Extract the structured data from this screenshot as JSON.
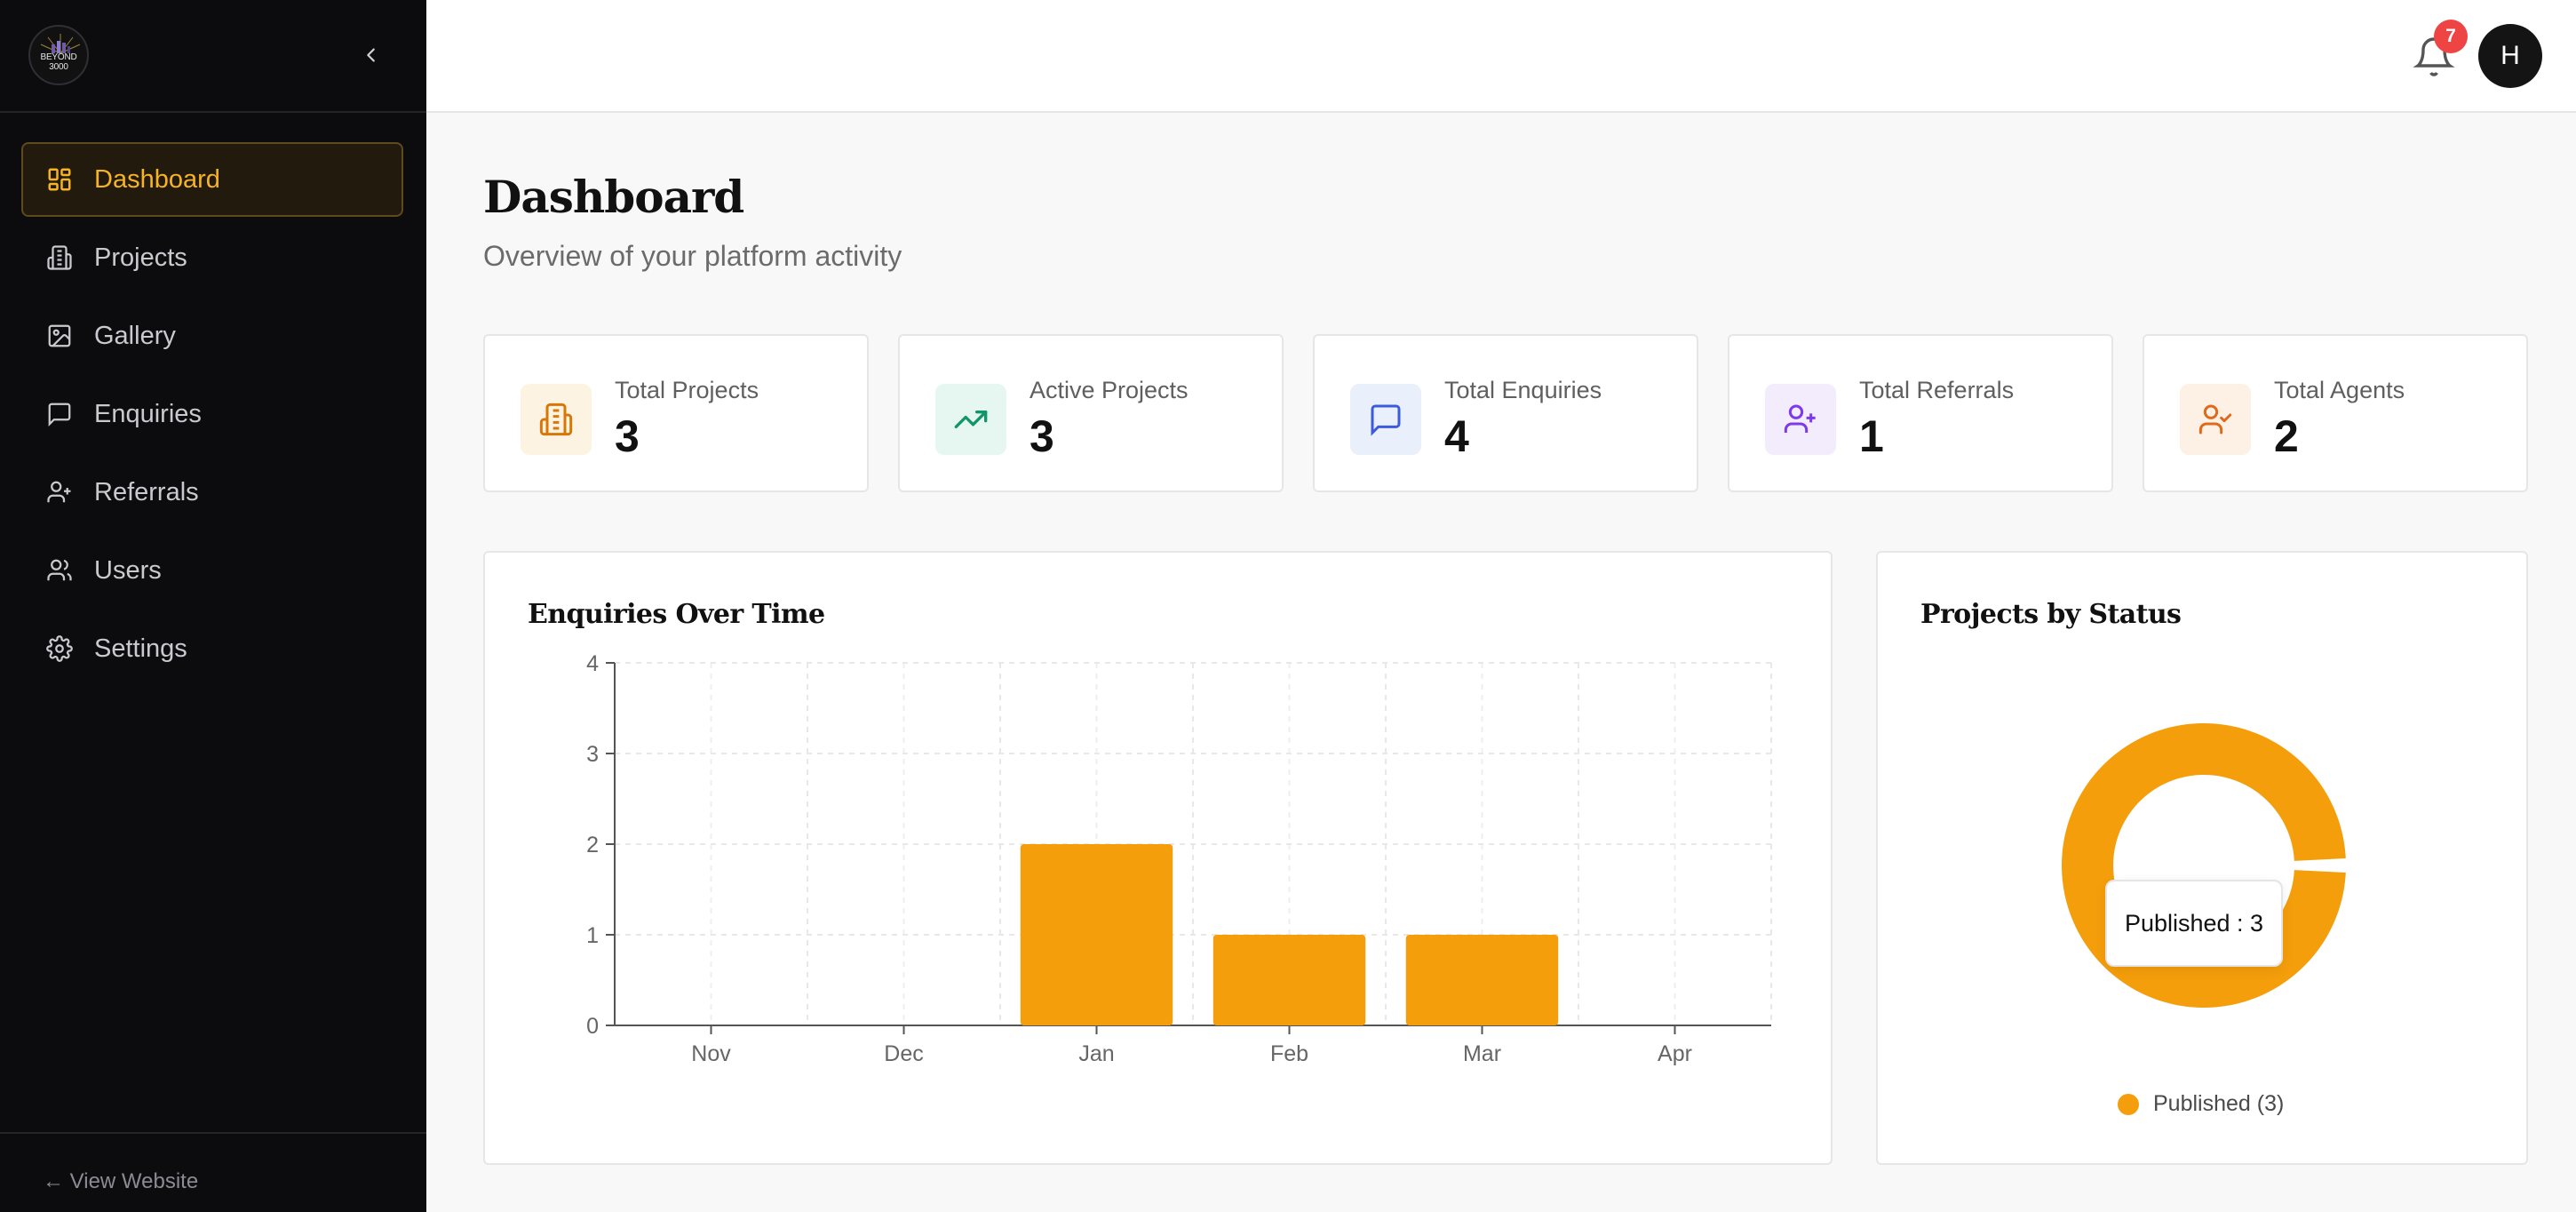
{
  "app": {
    "logo_text": "BEYOND 3000"
  },
  "sidebar": {
    "items": [
      {
        "label": "Dashboard",
        "icon": "dashboard-grid-icon",
        "active": true
      },
      {
        "label": "Projects",
        "icon": "building-icon"
      },
      {
        "label": "Gallery",
        "icon": "image-icon"
      },
      {
        "label": "Enquiries",
        "icon": "message-icon"
      },
      {
        "label": "Referrals",
        "icon": "user-plus-icon"
      },
      {
        "label": "Users",
        "icon": "users-icon"
      },
      {
        "label": "Settings",
        "icon": "gear-icon"
      }
    ],
    "footer_link": "← View Website"
  },
  "topbar": {
    "notifications_count": "7",
    "avatar_initial": "H"
  },
  "page": {
    "title": "Dashboard",
    "subtitle": "Overview of your platform activity"
  },
  "stats": [
    {
      "label": "Total Projects",
      "value": "3",
      "icon": "building-icon",
      "color": "#d97706",
      "bg": "#fdf3e3"
    },
    {
      "label": "Active Projects",
      "value": "3",
      "icon": "trending-up-icon",
      "color": "#10966a",
      "bg": "#e6f6f1"
    },
    {
      "label": "Total Enquiries",
      "value": "4",
      "icon": "message-icon",
      "color": "#3b5bdb",
      "bg": "#eaf0fb"
    },
    {
      "label": "Total Referrals",
      "value": "1",
      "icon": "user-plus-icon",
      "color": "#7c3aed",
      "bg": "#f2ecfd"
    },
    {
      "label": "Total Agents",
      "value": "2",
      "icon": "user-check-icon",
      "color": "#e06a1b",
      "bg": "#fdf1e6"
    }
  ],
  "colors": {
    "accent": "#f59e0b",
    "sidebar_bg": "#0c0c0f",
    "active_text": "#f5b325",
    "badge": "#ef4444"
  },
  "enquiries_chart": {
    "title": "Enquiries Over Time",
    "chart_data": {
      "type": "bar",
      "categories": [
        "Nov",
        "Dec",
        "Jan",
        "Feb",
        "Mar",
        "Apr"
      ],
      "values": [
        0,
        0,
        2,
        1,
        1,
        0
      ],
      "ylim": [
        0,
        4
      ],
      "yticks": [
        0,
        1,
        2,
        3,
        4
      ],
      "grid": true,
      "color": "#f59e0b"
    }
  },
  "status_chart": {
    "title": "Projects by Status",
    "tooltip": "Published : 3",
    "legend": [
      {
        "label": "Published (3)",
        "color": "#f59e0b"
      }
    ],
    "chart_data": {
      "type": "pie",
      "variant": "donut",
      "labels": [
        "Published"
      ],
      "values": [
        3
      ],
      "colors": [
        "#f59e0b"
      ]
    }
  }
}
